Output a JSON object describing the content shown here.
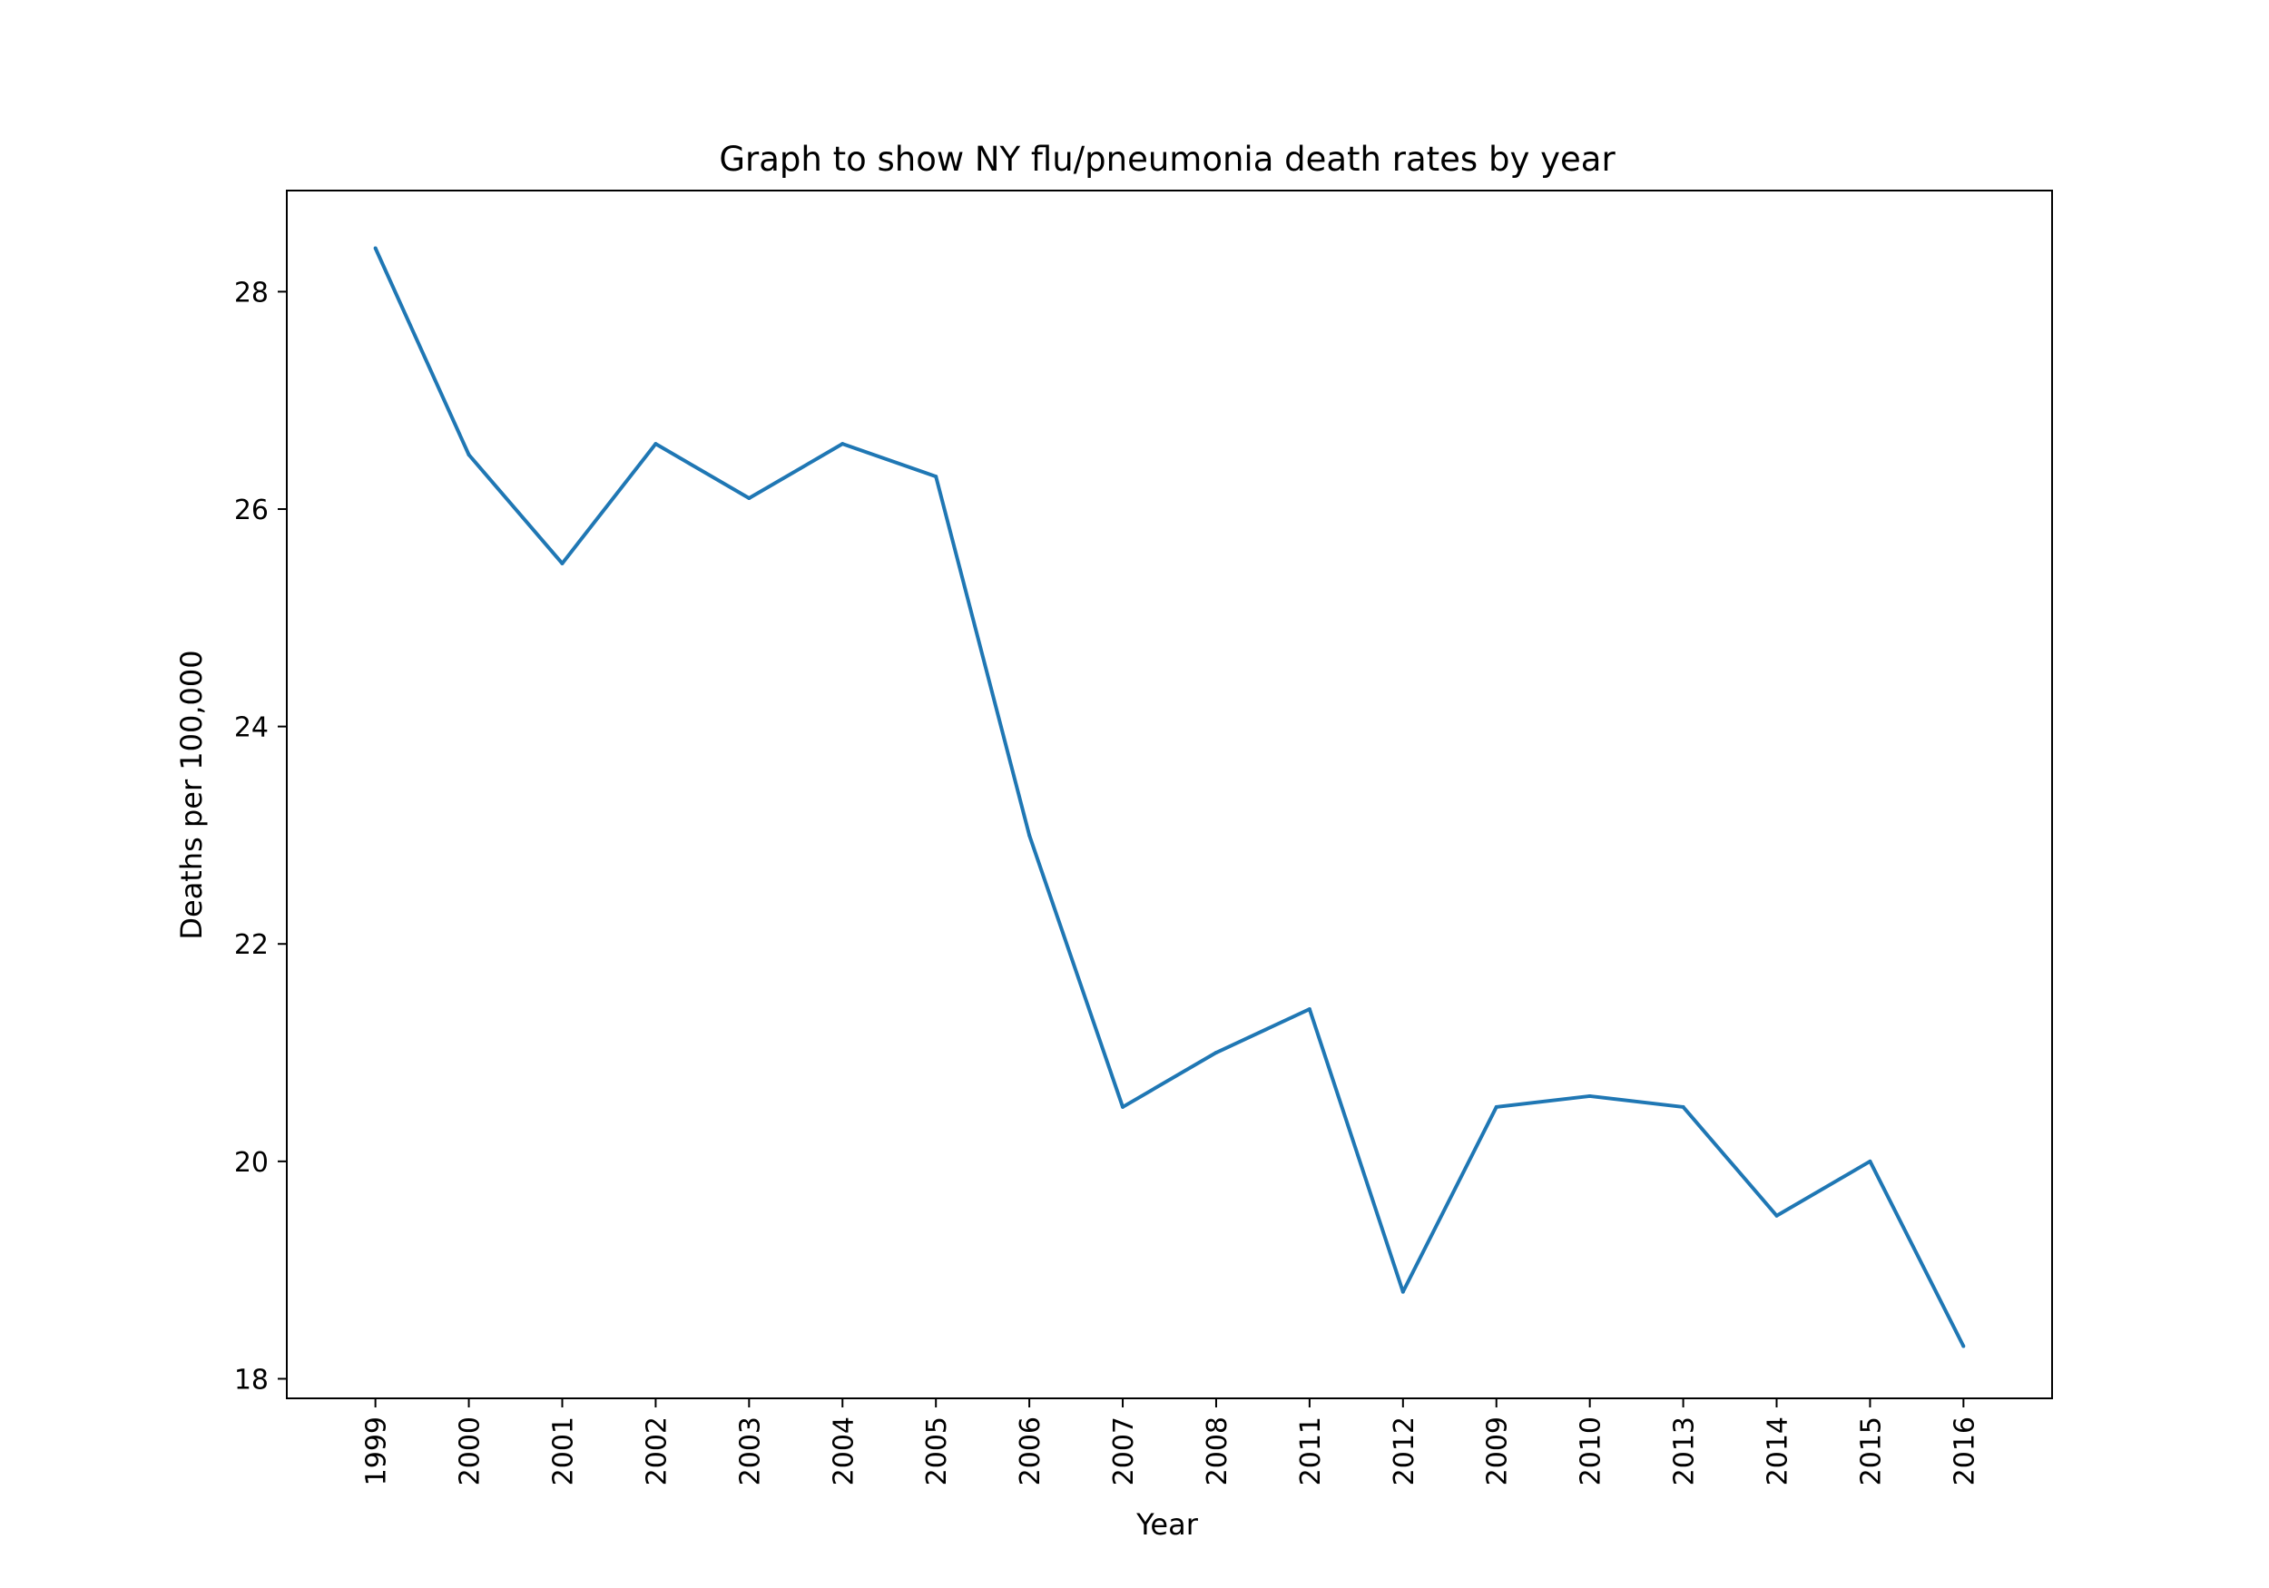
{
  "chart_data": {
    "type": "line",
    "title": "Graph to show NY flu/pneumonia death rates by year",
    "xlabel": "Year",
    "ylabel": "Deaths per 100,000",
    "categories": [
      "1999",
      "2000",
      "2001",
      "2002",
      "2003",
      "2004",
      "2005",
      "2006",
      "2007",
      "2008",
      "2011",
      "2012",
      "2009",
      "2010",
      "2013",
      "2014",
      "2015",
      "2016"
    ],
    "series": [
      {
        "values": [
          28.4,
          26.5,
          25.5,
          26.6,
          26.1,
          26.6,
          26.3,
          23.0,
          20.5,
          21.0,
          21.4,
          18.8,
          20.5,
          20.6,
          20.5,
          19.5,
          20.0,
          18.3
        ],
        "color": "#1f77b4"
      }
    ],
    "ylim": [
      17.82,
      28.93
    ],
    "yticks": [
      18,
      20,
      22,
      24,
      26,
      28
    ],
    "grid": false,
    "legend": "none"
  }
}
